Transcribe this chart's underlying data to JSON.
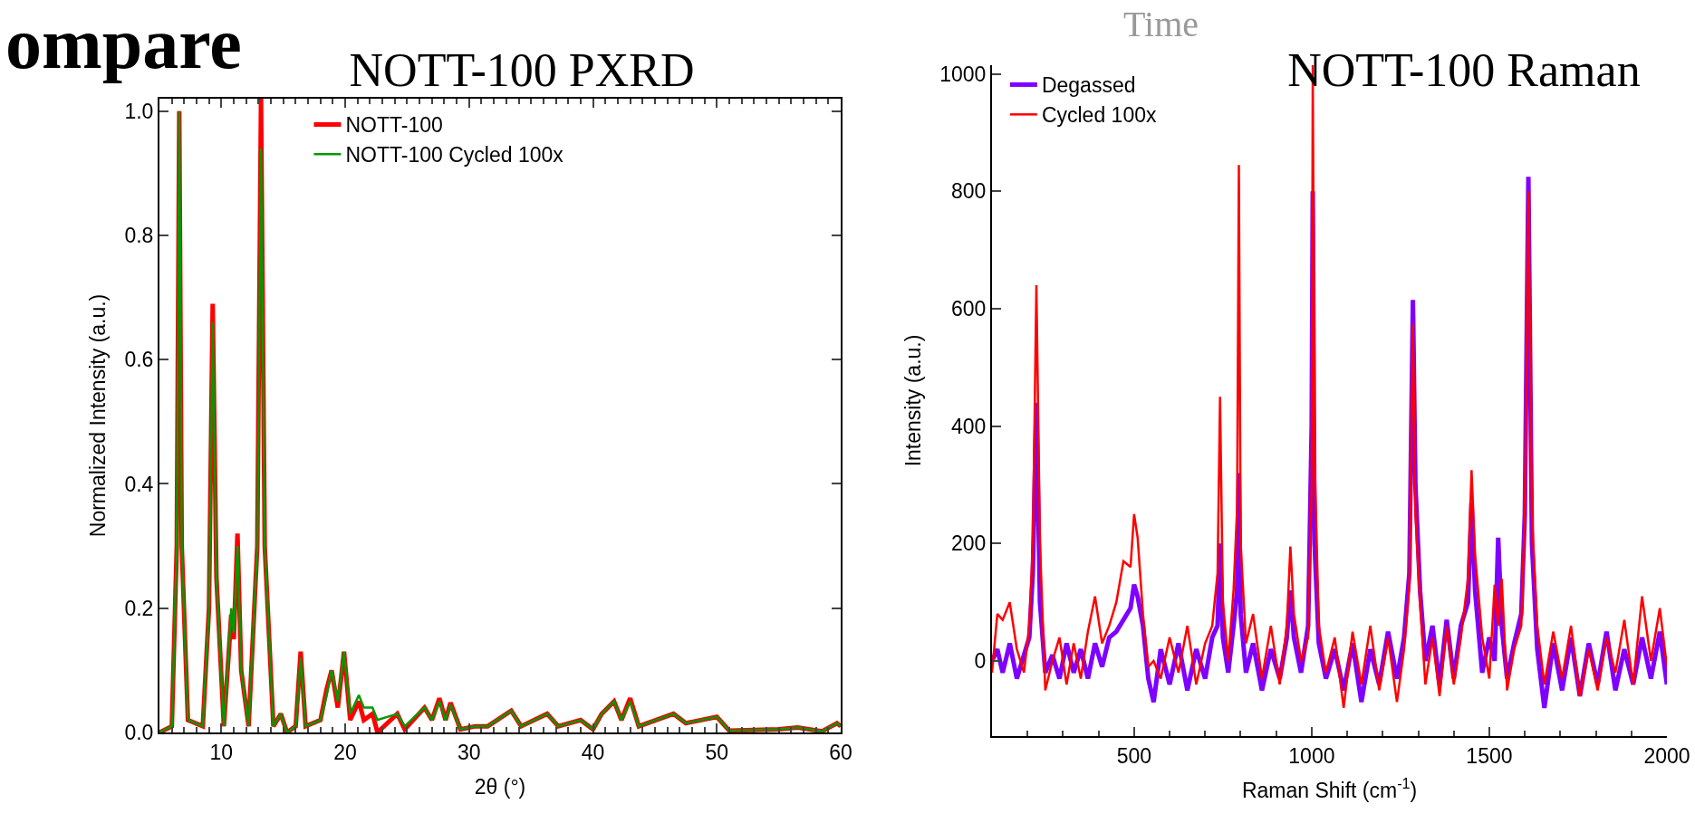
{
  "chart_data": [
    {
      "type": "line",
      "title": "NOTT-100 PXRD",
      "xlabel": "2θ (°)",
      "ylabel": "Normalized Intensity (a.u.)",
      "annotations": [
        "ompare"
      ],
      "x": [
        5,
        6,
        6.4,
        6.6,
        6.8,
        7.3,
        8.5,
        9.0,
        9.3,
        9.6,
        10.2,
        10.8,
        11.0,
        11.3,
        11.6,
        12.2,
        12.9,
        13.2,
        13.5,
        14.2,
        14.8,
        15.3,
        16.0,
        16.4,
        16.8,
        18.0,
        18.5,
        18.9,
        19.4,
        19.9,
        20.4,
        21.1,
        21.5,
        22.2,
        22.6,
        24.2,
        24.8,
        26.4,
        27.0,
        27.6,
        28.1,
        28.5,
        29.3,
        30.5,
        31.5,
        33.4,
        34.2,
        36.3,
        37.2,
        39.0,
        40.0,
        40.7,
        41.7,
        42.3,
        43.0,
        43.7,
        46.5,
        47.5,
        50.0,
        51.0,
        55.0,
        56.5,
        58.5,
        59.7,
        60
      ],
      "series": [
        {
          "name": "NOTT-100",
          "color": "#ff0000",
          "values": [
            0,
            0.01,
            0.3,
            1.0,
            0.3,
            0.02,
            0.01,
            0.2,
            0.69,
            0.25,
            0.01,
            0.19,
            0.15,
            0.32,
            0.1,
            0.01,
            0.3,
            1.02,
            0.3,
            0.01,
            0.03,
            0.0,
            0.01,
            0.13,
            0.01,
            0.02,
            0.07,
            0.1,
            0.04,
            0.13,
            0.02,
            0.05,
            0.02,
            0.03,
            0.0,
            0.03,
            0.005,
            0.04,
            0.02,
            0.055,
            0.02,
            0.048,
            0.005,
            0.01,
            0.01,
            0.035,
            0.01,
            0.03,
            0.01,
            0.02,
            0.005,
            0.03,
            0.05,
            0.02,
            0.055,
            0.01,
            0.03,
            0.015,
            0.025,
            0.003,
            0.005,
            0.008,
            0.002,
            0.015,
            0.01
          ]
        },
        {
          "name": "NOTT-100 Cycled 100x",
          "color": "#009900",
          "values": [
            0,
            0.01,
            0.3,
            1.0,
            0.3,
            0.02,
            0.01,
            0.2,
            0.66,
            0.25,
            0.01,
            0.2,
            0.16,
            0.3,
            0.1,
            0.01,
            0.3,
            0.94,
            0.3,
            0.01,
            0.03,
            0.0,
            0.01,
            0.12,
            0.01,
            0.02,
            0.06,
            0.1,
            0.05,
            0.13,
            0.03,
            0.06,
            0.04,
            0.04,
            0.02,
            0.03,
            0.01,
            0.04,
            0.02,
            0.05,
            0.02,
            0.045,
            0.005,
            0.01,
            0.01,
            0.035,
            0.01,
            0.03,
            0.01,
            0.02,
            0.005,
            0.03,
            0.05,
            0.02,
            0.05,
            0.01,
            0.03,
            0.015,
            0.025,
            0.003,
            0.005,
            0.008,
            0.002,
            0.015,
            0.01
          ]
        }
      ],
      "xlim": [
        5,
        60
      ],
      "xticks": [
        10,
        20,
        30,
        40,
        50,
        60
      ],
      "ylim": [
        0,
        1.02
      ],
      "yticks": [
        {
          "value": 0,
          "label": "0.0"
        },
        {
          "value": 0.2,
          "label": "0.2"
        },
        {
          "value": 0.4,
          "label": "0.4"
        },
        {
          "value": 0.6,
          "label": "0.6"
        },
        {
          "value": 0.8,
          "label": "0.8"
        },
        {
          "value": 1,
          "label": "1.0"
        }
      ],
      "grid": false,
      "legend": "top",
      "line_style": "solid",
      "marker": "none"
    },
    {
      "type": "line",
      "title": "NOTT-100 Raman",
      "xlabel": "Raman Shift (cm$^{-1}$)",
      "ylabel": "Intensity (a.u.)",
      "annotations": [
        "Time"
      ],
      "x": [
        100,
        115,
        130,
        150,
        170,
        190,
        205,
        215,
        225,
        235,
        250,
        270,
        290,
        310,
        330,
        350,
        370,
        390,
        410,
        430,
        450,
        470,
        490,
        500,
        510,
        525,
        540,
        555,
        575,
        600,
        625,
        650,
        675,
        700,
        720,
        735,
        742,
        750,
        765,
        780,
        790,
        795,
        800,
        815,
        835,
        860,
        885,
        910,
        930,
        940,
        950,
        970,
        990,
        1000,
        1003,
        1008,
        1020,
        1040,
        1065,
        1090,
        1115,
        1140,
        1165,
        1190,
        1215,
        1240,
        1260,
        1275,
        1285,
        1292,
        1305,
        1320,
        1340,
        1360,
        1380,
        1400,
        1420,
        1440,
        1450,
        1460,
        1480,
        1500,
        1515,
        1525,
        1535,
        1550,
        1570,
        1590,
        1600,
        1610,
        1620,
        1635,
        1655,
        1680,
        1705,
        1730,
        1755,
        1780,
        1805,
        1830,
        1855,
        1880,
        1905,
        1930,
        1955,
        1980,
        2000
      ],
      "series": [
        {
          "name": "Degassed",
          "color": "#7f00ff",
          "values": [
            0,
            20,
            -20,
            30,
            -30,
            10,
            40,
            150,
            440,
            100,
            -20,
            10,
            -30,
            30,
            -20,
            20,
            -30,
            30,
            -10,
            40,
            50,
            70,
            90,
            130,
            110,
            60,
            -30,
            -70,
            20,
            -40,
            30,
            -50,
            20,
            -30,
            40,
            60,
            200,
            40,
            -20,
            60,
            120,
            320,
            80,
            -20,
            30,
            -50,
            20,
            -30,
            40,
            120,
            40,
            -20,
            60,
            400,
            800,
            200,
            30,
            -30,
            20,
            -50,
            30,
            -70,
            20,
            -40,
            50,
            -30,
            40,
            150,
            615,
            300,
            120,
            0,
            60,
            -40,
            70,
            -30,
            60,
            100,
            270,
            120,
            -20,
            40,
            0,
            210,
            60,
            -30,
            30,
            80,
            250,
            825,
            200,
            20,
            -80,
            30,
            -50,
            40,
            -60,
            30,
            -40,
            50,
            -50,
            20,
            -40,
            40,
            -30,
            50,
            -40
          ]
        },
        {
          "name": "Cycled 100x",
          "color": "#ff0000",
          "values": [
            -20,
            80,
            70,
            100,
            20,
            -20,
            60,
            200,
            640,
            200,
            -50,
            0,
            40,
            -40,
            30,
            -30,
            50,
            110,
            30,
            60,
            100,
            170,
            160,
            250,
            210,
            80,
            -10,
            0,
            -30,
            40,
            -20,
            60,
            -40,
            30,
            60,
            150,
            450,
            100,
            0,
            120,
            260,
            845,
            200,
            30,
            80,
            -30,
            60,
            -40,
            60,
            195,
            80,
            0,
            40,
            300,
            1015,
            350,
            60,
            -20,
            40,
            -80,
            50,
            -40,
            60,
            -50,
            40,
            -70,
            20,
            130,
            575,
            250,
            100,
            -40,
            40,
            -60,
            60,
            -40,
            40,
            140,
            325,
            180,
            40,
            -30,
            130,
            60,
            140,
            -50,
            20,
            60,
            250,
            800,
            250,
            60,
            -40,
            50,
            -30,
            60,
            -60,
            20,
            -50,
            40,
            -20,
            70,
            -40,
            110,
            0,
            90,
            -10
          ]
        }
      ],
      "xlim": [
        100,
        2000
      ],
      "xticks": [
        500,
        1000,
        1500,
        2000
      ],
      "ylim": [
        -128,
        1015
      ],
      "yticks": [
        0,
        200,
        400,
        600,
        800,
        1000
      ],
      "grid": false,
      "legend": "top left",
      "line_style": "solid",
      "marker": "none"
    }
  ]
}
